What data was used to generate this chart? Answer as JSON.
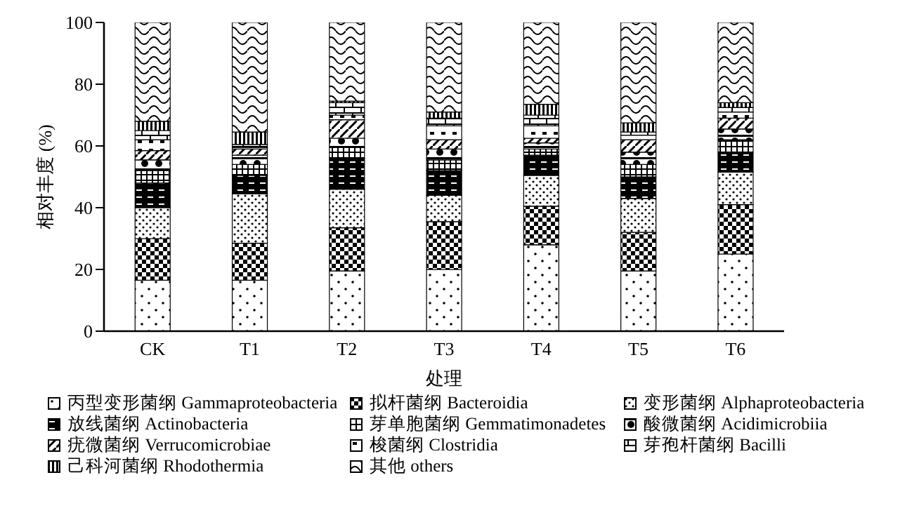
{
  "chart_data": {
    "type": "bar",
    "stacked": true,
    "xlabel": "处理",
    "ylabel": "相对丰度 (%)",
    "categories": [
      "CK",
      "T1",
      "T2",
      "T3",
      "T4",
      "T5",
      "T6"
    ],
    "ylim": [
      0,
      100
    ],
    "yticks": [
      0,
      20,
      40,
      60,
      80,
      100
    ],
    "grid": false,
    "legend": "bottom",
    "series": [
      {
        "name": "丙型变形菌纲 Gammaproteobacteria",
        "color": "#000000",
        "values": [
          16.5,
          16.5,
          19.5,
          20,
          28,
          19.5,
          25
        ]
      },
      {
        "name": "拟杆菌纲 Bacteroidia",
        "color": "#000000",
        "values": [
          13.5,
          12,
          14,
          15.5,
          12.5,
          12.5,
          16
        ]
      },
      {
        "name": "变形菌纲 Alphaproteobacteria",
        "color": "#000000",
        "values": [
          10,
          16,
          12.5,
          8.5,
          10,
          11,
          10.5
        ]
      },
      {
        "name": "放线菌纲 Actinobacteria",
        "color": "#000000",
        "values": [
          8,
          6,
          10,
          8,
          6.5,
          7,
          6.5
        ]
      },
      {
        "name": "芽单胞菌纲 Gemmatimonadetes",
        "color": "#000000",
        "values": [
          4,
          3.5,
          3.5,
          3.5,
          2,
          4,
          4
        ]
      },
      {
        "name": "酸微菌纲 Acidimicrobiia",
        "color": "#000000",
        "values": [
          3.5,
          3,
          3,
          3.5,
          2,
          4,
          3.5
        ]
      },
      {
        "name": "疣微菌纲 Verrucomicrobiae",
        "color": "#000000",
        "values": [
          3,
          2,
          6,
          3,
          1.5,
          4,
          3.5
        ]
      },
      {
        "name": "梭菌纲 Clostridia",
        "color": "#000000",
        "values": [
          3.5,
          0.5,
          1.5,
          4.5,
          4,
          1.5,
          2
        ]
      },
      {
        "name": "芽孢杆菌纲 Bacilli",
        "color": "#000000",
        "values": [
          3,
          1,
          4,
          2.5,
          3.5,
          1,
          1.5
        ]
      },
      {
        "name": "己科河菌纲 Rhodothermia",
        "color": "#000000",
        "values": [
          3,
          4,
          0.5,
          2,
          3.5,
          3,
          1.5
        ]
      },
      {
        "name": "其他 others",
        "color": "#000000",
        "values": [
          32,
          35.5,
          25.5,
          29,
          26.5,
          32.5,
          26
        ]
      }
    ]
  }
}
